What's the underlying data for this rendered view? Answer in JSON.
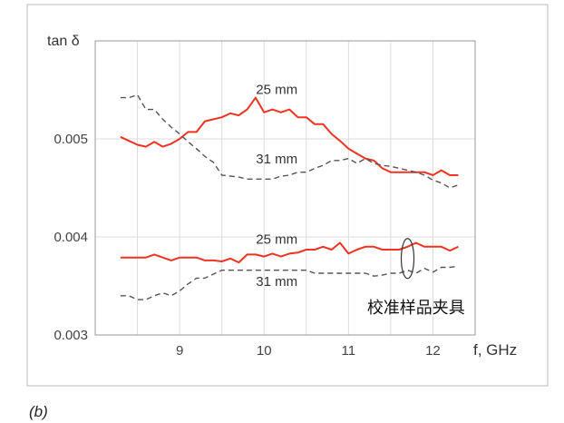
{
  "caption": "(b)",
  "chart_data": {
    "type": "line",
    "title": "",
    "xlabel": "f, GHz",
    "ylabel": "tan δ",
    "xlim": [
      8.0,
      12.5
    ],
    "ylim": [
      0.003,
      0.006
    ],
    "xticks": [
      9,
      10,
      11,
      12
    ],
    "xtick_labels": [
      "9",
      "10",
      "11",
      "12"
    ],
    "yticks": [
      0.003,
      0.004,
      0.005
    ],
    "ytick_labels": [
      "0.003",
      "0.004",
      "0.005"
    ],
    "grid": true,
    "x": [
      8.3,
      8.4,
      8.5,
      8.6,
      8.7,
      8.8,
      8.9,
      9.0,
      9.1,
      9.2,
      9.3,
      9.4,
      9.5,
      9.6,
      9.7,
      9.8,
      9.9,
      10.0,
      10.1,
      10.2,
      10.3,
      10.4,
      10.5,
      10.6,
      10.7,
      10.8,
      10.9,
      11.0,
      11.1,
      11.2,
      11.3,
      11.4,
      11.5,
      11.6,
      11.7,
      11.8,
      11.9,
      12.0,
      12.1,
      12.2,
      12.3
    ],
    "series": [
      {
        "name": "25 mm (upper)",
        "color": "#ee3322",
        "style": "solid",
        "values": [
          0.00502,
          0.00498,
          0.00494,
          0.00492,
          0.00497,
          0.00492,
          0.00495,
          0.005,
          0.00507,
          0.00507,
          0.00518,
          0.0052,
          0.00522,
          0.00526,
          0.00524,
          0.0053,
          0.00542,
          0.00527,
          0.0053,
          0.00527,
          0.0053,
          0.00522,
          0.00522,
          0.00515,
          0.00515,
          0.00505,
          0.00498,
          0.0049,
          0.00485,
          0.0048,
          0.00478,
          0.0047,
          0.00466,
          0.00466,
          0.00466,
          0.00466,
          0.00466,
          0.00463,
          0.00468,
          0.00463,
          0.00463
        ]
      },
      {
        "name": "31 mm (upper)",
        "color": "#555555",
        "style": "dashed",
        "values": [
          0.00542,
          0.00542,
          0.00545,
          0.0053,
          0.0053,
          0.0052,
          0.00512,
          0.00505,
          0.00497,
          0.0049,
          0.00482,
          0.00476,
          0.00463,
          0.00462,
          0.00461,
          0.00459,
          0.00459,
          0.00459,
          0.00459,
          0.00462,
          0.00463,
          0.00466,
          0.00466,
          0.0047,
          0.00473,
          0.00478,
          0.00478,
          0.0048,
          0.00475,
          0.0048,
          0.00475,
          0.00473,
          0.00472,
          0.0047,
          0.00468,
          0.00466,
          0.00463,
          0.00458,
          0.00455,
          0.0045,
          0.00453
        ]
      },
      {
        "name": "25 mm (lower)",
        "color": "#ee3322",
        "style": "solid",
        "values": [
          0.00379,
          0.00379,
          0.00379,
          0.00379,
          0.00382,
          0.00379,
          0.00376,
          0.00379,
          0.00379,
          0.00379,
          0.00376,
          0.00376,
          0.00375,
          0.00378,
          0.00374,
          0.00382,
          0.00382,
          0.0038,
          0.00383,
          0.0038,
          0.00383,
          0.00384,
          0.00387,
          0.00387,
          0.0039,
          0.00387,
          0.00394,
          0.00383,
          0.00387,
          0.0039,
          0.0039,
          0.00387,
          0.00387,
          0.00387,
          0.0039,
          0.00394,
          0.0039,
          0.0039,
          0.0039,
          0.00386,
          0.0039
        ]
      },
      {
        "name": "31 mm (lower)",
        "color": "#555555",
        "style": "dashed",
        "values": [
          0.0034,
          0.0034,
          0.00336,
          0.00336,
          0.0034,
          0.00343,
          0.0034,
          0.00345,
          0.00352,
          0.00358,
          0.00358,
          0.00362,
          0.00366,
          0.00366,
          0.00366,
          0.00366,
          0.00366,
          0.00366,
          0.00366,
          0.00366,
          0.00366,
          0.00366,
          0.00366,
          0.00363,
          0.00363,
          0.00363,
          0.00363,
          0.00363,
          0.00363,
          0.00363,
          0.0036,
          0.00361,
          0.00363,
          0.00363,
          0.00366,
          0.00363,
          0.00368,
          0.00364,
          0.00369,
          0.00369,
          0.0037
        ]
      }
    ],
    "annotations": [
      {
        "text": "25 mm",
        "x": 10.15,
        "y": 0.00546
      },
      {
        "text": "31 mm",
        "x": 10.15,
        "y": 0.00475
      },
      {
        "text": "25 mm",
        "x": 10.15,
        "y": 0.00393
      },
      {
        "text": "31 mm",
        "x": 10.15,
        "y": 0.0035
      },
      {
        "text": "校准样品夹具",
        "x": 11.8,
        "y": 0.00322
      }
    ],
    "ellipse": {
      "x": 11.7,
      "y": 0.00378
    }
  }
}
